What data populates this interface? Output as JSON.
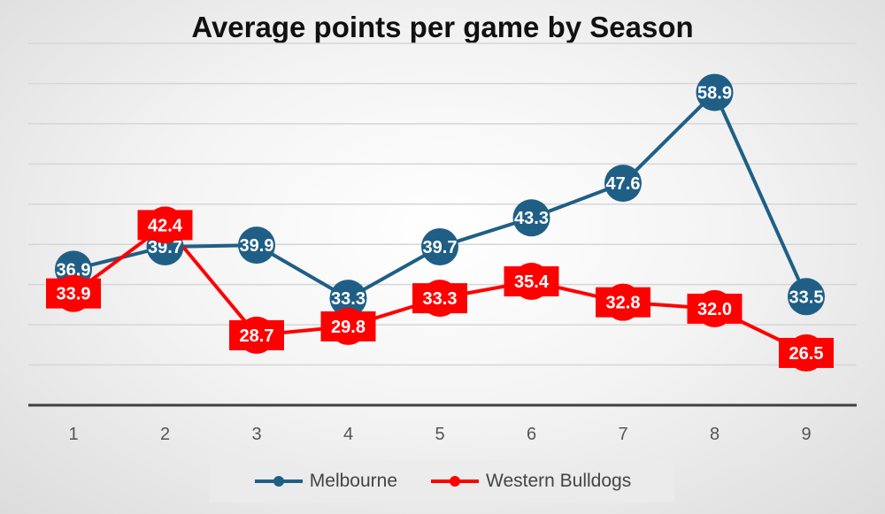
{
  "chart_data": {
    "type": "line",
    "title": "Average points per game by Season",
    "xlabel": "",
    "ylabel": "",
    "categories": [
      "1",
      "2",
      "3",
      "4",
      "5",
      "6",
      "7",
      "8",
      "9"
    ],
    "series": [
      {
        "name": "Melbourne",
        "color": "#1f5f86",
        "marker": "circle",
        "values": [
          36.9,
          39.7,
          39.9,
          33.3,
          39.7,
          43.3,
          47.6,
          58.9,
          33.5
        ]
      },
      {
        "name": "Western Bulldogs",
        "color": "#ff0000",
        "marker": "square-label",
        "values": [
          33.9,
          42.4,
          28.7,
          29.8,
          33.3,
          35.4,
          32.8,
          32.0,
          26.5
        ]
      }
    ],
    "ylim": [
      20,
      65
    ],
    "grid": true,
    "legend_position": "bottom",
    "axis_color": "#404040",
    "gridline_color": "#d6d6d6"
  }
}
